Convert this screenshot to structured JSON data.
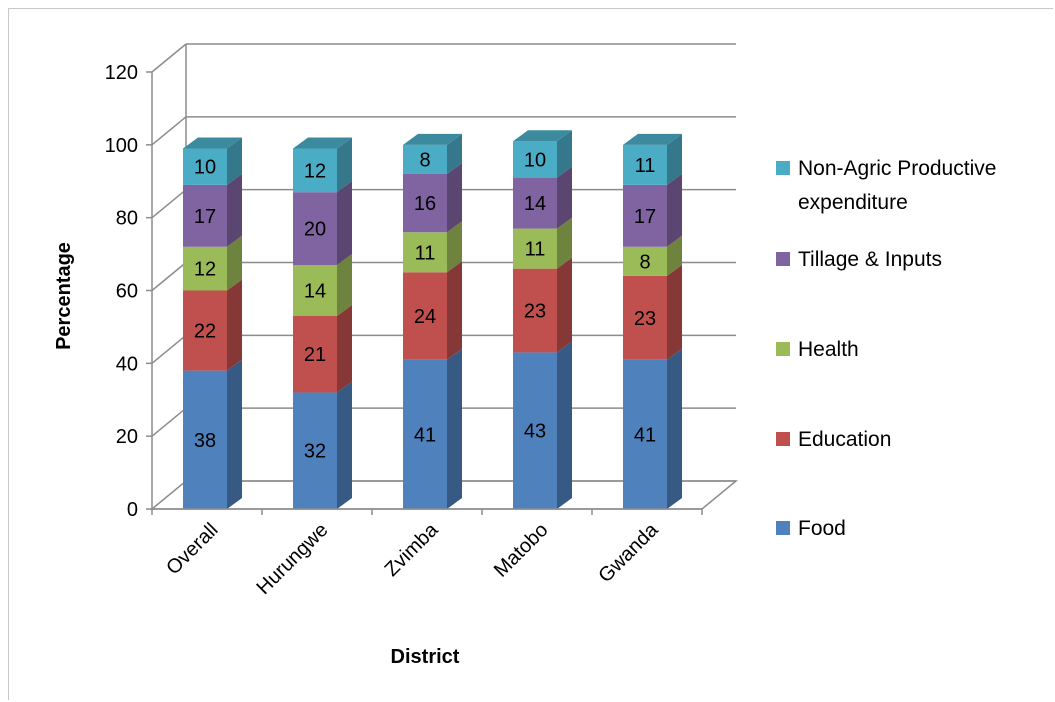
{
  "chart_data": {
    "type": "bar",
    "stacked": true,
    "three_d": true,
    "title": "",
    "xlabel": "District",
    "ylabel": "Percentage",
    "ylim": [
      0,
      120
    ],
    "yticks": [
      0,
      20,
      40,
      60,
      80,
      100,
      120
    ],
    "grid": true,
    "legend_position": "right",
    "categories": [
      "Overall",
      "Hurungwe",
      "Zvimba",
      "Matobo",
      "Gwanda"
    ],
    "series": [
      {
        "name": "Food",
        "values": [
          38,
          32,
          41,
          43,
          41
        ],
        "color": "#4F81BD"
      },
      {
        "name": "Education",
        "values": [
          22,
          21,
          24,
          23,
          23
        ],
        "color": "#C0504D"
      },
      {
        "name": "Health",
        "values": [
          12,
          14,
          11,
          11,
          8
        ],
        "color": "#9BBB59"
      },
      {
        "name": "Tillage & Inputs",
        "values": [
          17,
          20,
          16,
          14,
          17
        ],
        "color": "#8064A2"
      },
      {
        "name": "Non-Agric Productive expenditure",
        "values": [
          10,
          12,
          8,
          10,
          11
        ],
        "color": "#4BACC6"
      }
    ]
  }
}
